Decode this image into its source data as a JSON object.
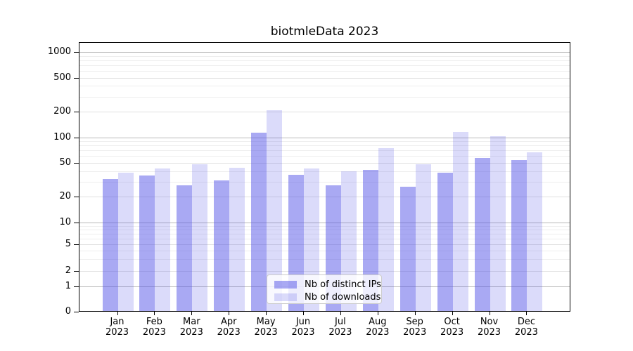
{
  "title": "biotmleData 2023",
  "chart_data": {
    "type": "bar",
    "title": "biotmleData 2023",
    "categories": [
      "Jan 2023",
      "Feb 2023",
      "Mar 2023",
      "Apr 2023",
      "May 2023",
      "Jun 2023",
      "Jul 2023",
      "Aug 2023",
      "Sep 2023",
      "Oct 2023",
      "Nov 2023",
      "Dec 2023"
    ],
    "series": [
      {
        "name": "Nb of distinct IPs",
        "color": "rgba(80,80,230,0.49)",
        "values": [
          33,
          36,
          28,
          32,
          115,
          37,
          28,
          42,
          27,
          39,
          58,
          55
        ]
      },
      {
        "name": "Nb of downloads",
        "color": "rgba(80,80,230,0.205)",
        "values": [
          39,
          44,
          49,
          45,
          210,
          44,
          41,
          76,
          49,
          118,
          105,
          68
        ]
      }
    ],
    "xlabel": "",
    "ylabel": "",
    "y_axis": {
      "scale": "symlog",
      "ticks": [
        0,
        1,
        2,
        5,
        10,
        20,
        50,
        100,
        200,
        500,
        1000
      ],
      "ylim": [
        0,
        1300
      ]
    },
    "grid": true,
    "legend_position": "lower center"
  },
  "colors": {
    "bar_dark": "rgba(80,80,230,0.49)",
    "bar_light": "rgba(80,80,230,0.205)",
    "grid_major": "#b9b9b9",
    "grid_minor": "#e0e0e0"
  }
}
